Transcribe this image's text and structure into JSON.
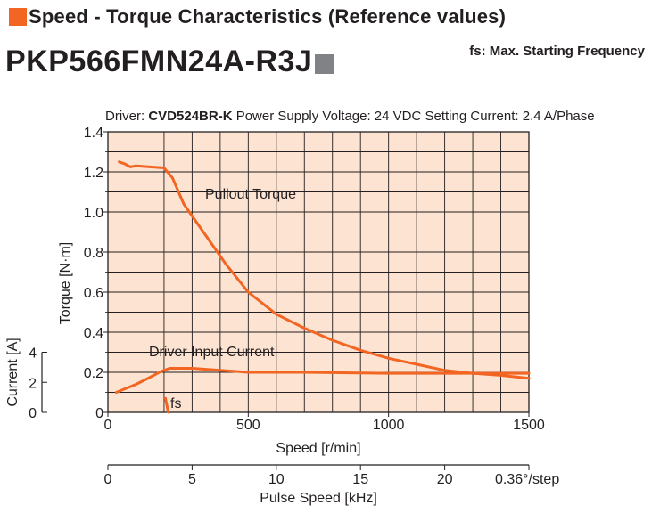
{
  "header": {
    "title": "Speed - Torque Characteristics (Reference values)",
    "model": "PKP566FMN24A-R3J",
    "fs_note": "fs: Max. Starting Frequency",
    "accent_color": "#f26522",
    "model_square_color": "#808285"
  },
  "chart_data": {
    "type": "line",
    "subtitle_parts": [
      "Driver: ",
      "CVD524BR-K",
      "  Power Supply Voltage: 24 VDC  Setting Current: 2.4 A/Phase"
    ],
    "xlabel": "Speed [r/min]",
    "ylabel": "Torque [N·m]",
    "y2label": "Current [A]",
    "x2label": "Pulse Speed [kHz]",
    "x2_unit_label": "0.36°/step",
    "xlim": [
      0,
      1500
    ],
    "ylim": [
      0,
      1.4
    ],
    "y2lim": [
      0,
      4
    ],
    "x_ticks": [
      0,
      500,
      1000,
      1500
    ],
    "y_ticks": [
      "0",
      "0.2",
      "0.4",
      "0.6",
      "0.8",
      "1.0",
      "1.2",
      "1.4"
    ],
    "y2_ticks": [
      "0",
      "2",
      "4"
    ],
    "x2_ticks": [
      "0",
      "5",
      "10",
      "15",
      "20"
    ],
    "grid": true,
    "plot_background": "#fde3d1",
    "line_color": "#f26522",
    "series": [
      {
        "name": "Pullout Torque",
        "x": [
          40,
          60,
          80,
          100,
          150,
          200,
          230,
          270,
          300,
          360,
          420,
          500,
          600,
          700,
          800,
          900,
          1000,
          1100,
          1200,
          1300,
          1400,
          1500
        ],
        "y": [
          1.25,
          1.24,
          1.225,
          1.23,
          1.225,
          1.22,
          1.17,
          1.04,
          0.98,
          0.86,
          0.74,
          0.6,
          0.49,
          0.42,
          0.36,
          0.31,
          0.27,
          0.24,
          0.21,
          0.195,
          0.185,
          0.17
        ]
      },
      {
        "name": "Driver Input Current",
        "x": [
          30,
          100,
          150,
          190,
          220,
          300,
          400,
          500,
          700,
          1000,
          1300,
          1500
        ],
        "y": [
          0.1,
          0.14,
          0.175,
          0.205,
          0.22,
          0.22,
          0.21,
          0.2,
          0.2,
          0.195,
          0.195,
          0.195
        ]
      },
      {
        "name": "fs",
        "x": [
          205,
          215
        ],
        "y": [
          0.07,
          0.0
        ]
      }
    ]
  }
}
